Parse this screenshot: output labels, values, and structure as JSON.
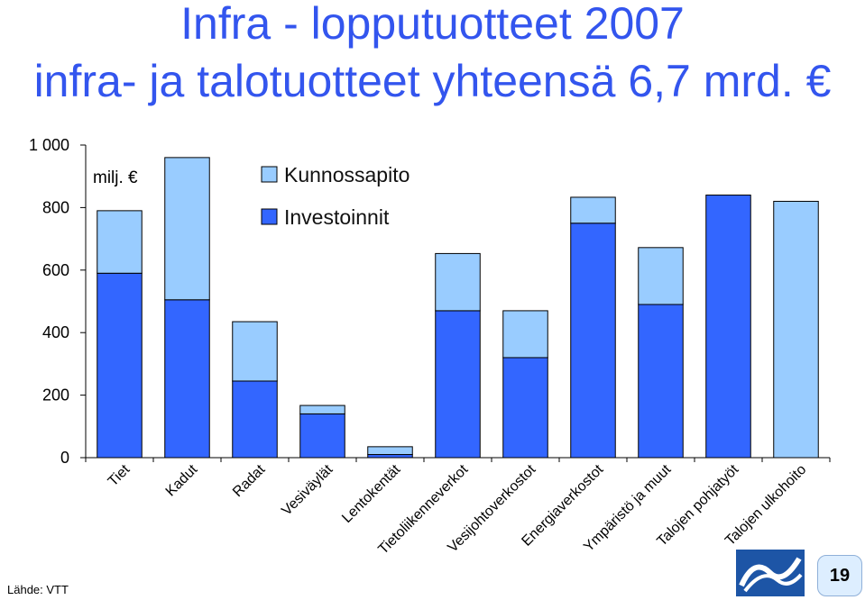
{
  "slide": {
    "title_line1": "Infra - lopputuotteet 2007",
    "title_line2": "infra- ja talotuotteet yhteensä 6,7 mrd. €",
    "source": "Lähde: VTT",
    "page_number": "19"
  },
  "colors": {
    "investment": "#3366ff",
    "maintenance": "#99ccff",
    "title": "#3355ee"
  },
  "chart_data": {
    "type": "bar",
    "stacked": true,
    "unit_label": "milj. €",
    "categories": [
      "Tiet",
      "Kadut",
      "Radat",
      "Vesiväylät",
      "Lentokentät",
      "Tietoliikenneverkot",
      "Vesijohtoverkostot",
      "Energiaverkostot",
      "Ympäristö ja muut",
      "Talojen pohjatyöt",
      "Talojen ulkohoito"
    ],
    "series": [
      {
        "name": "Investoinnit",
        "color": "#3366ff",
        "values": [
          590,
          505,
          245,
          140,
          10,
          470,
          320,
          750,
          490,
          840,
          0
        ]
      },
      {
        "name": "Kunnossapito",
        "color": "#99ccff",
        "values": [
          200,
          455,
          190,
          27,
          25,
          183,
          150,
          83,
          182,
          0,
          820
        ]
      }
    ],
    "ylim": [
      0,
      1000
    ],
    "yticks": [
      0,
      200,
      400,
      600,
      800,
      1000
    ],
    "ytick_labels": [
      "0",
      "200",
      "400",
      "600",
      "800",
      "1 000"
    ],
    "legend": [
      {
        "label": "Kunnossapito",
        "color": "#99ccff"
      },
      {
        "label": "Investoinnit",
        "color": "#3366ff"
      }
    ],
    "legend_position": "top-center",
    "grid": false
  }
}
